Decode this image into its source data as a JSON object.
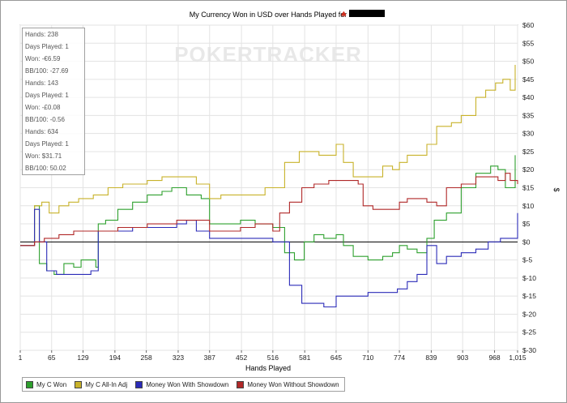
{
  "chart_data": {
    "type": "line",
    "title": "My Currency Won in USD over Hands Played for",
    "xlabel": "Hands Played",
    "ylabel": "$",
    "x_ticks": [
      "1",
      "65",
      "129",
      "194",
      "258",
      "323",
      "387",
      "452",
      "516",
      "581",
      "645",
      "710",
      "774",
      "839",
      "903",
      "968",
      "1,015"
    ],
    "y_ticks": [
      "$60",
      "$55",
      "$50",
      "$45",
      "$40",
      "$35",
      "$30",
      "$25",
      "$20",
      "$15",
      "$10",
      "$5",
      "$0",
      "$-5",
      "$-10",
      "$-15",
      "$-20",
      "$-25",
      "$-30"
    ],
    "ylim": [
      -30,
      60
    ],
    "xlim": [
      1,
      1015
    ],
    "grid": true,
    "legend_position": "bottom-left",
    "watermark": "POKERTRACKER",
    "series": [
      {
        "name": "My C Won",
        "color": "#2ea02e",
        "points": [
          [
            1,
            -1
          ],
          [
            20,
            -1
          ],
          [
            30,
            10
          ],
          [
            40,
            -6
          ],
          [
            55,
            -8
          ],
          [
            70,
            -9
          ],
          [
            90,
            -6
          ],
          [
            110,
            -7
          ],
          [
            125,
            -5
          ],
          [
            155,
            -7
          ],
          [
            160,
            5
          ],
          [
            175,
            6
          ],
          [
            200,
            9
          ],
          [
            230,
            11
          ],
          [
            260,
            13
          ],
          [
            290,
            14
          ],
          [
            310,
            15
          ],
          [
            340,
            13
          ],
          [
            370,
            12
          ],
          [
            387,
            5
          ],
          [
            420,
            5
          ],
          [
            450,
            6
          ],
          [
            480,
            5
          ],
          [
            510,
            5
          ],
          [
            516,
            4
          ],
          [
            540,
            -3
          ],
          [
            560,
            -5
          ],
          [
            580,
            0
          ],
          [
            600,
            2
          ],
          [
            620,
            1
          ],
          [
            645,
            2
          ],
          [
            660,
            -1
          ],
          [
            680,
            -4
          ],
          [
            710,
            -5
          ],
          [
            740,
            -4
          ],
          [
            760,
            -3
          ],
          [
            774,
            -1
          ],
          [
            790,
            -2
          ],
          [
            810,
            -3
          ],
          [
            830,
            1
          ],
          [
            845,
            6
          ],
          [
            870,
            8
          ],
          [
            900,
            15
          ],
          [
            930,
            19
          ],
          [
            960,
            21
          ],
          [
            975,
            20
          ],
          [
            990,
            15
          ],
          [
            1010,
            24
          ]
        ]
      },
      {
        "name": "My C All-In Adj",
        "color": "#c8b22a",
        "points": [
          [
            1,
            -1
          ],
          [
            20,
            -1
          ],
          [
            30,
            10
          ],
          [
            45,
            11
          ],
          [
            60,
            8
          ],
          [
            80,
            10
          ],
          [
            100,
            11
          ],
          [
            120,
            12
          ],
          [
            150,
            13
          ],
          [
            180,
            15
          ],
          [
            210,
            16
          ],
          [
            240,
            16
          ],
          [
            260,
            17
          ],
          [
            290,
            18
          ],
          [
            320,
            18
          ],
          [
            345,
            18
          ],
          [
            360,
            16
          ],
          [
            387,
            12
          ],
          [
            410,
            13
          ],
          [
            440,
            13
          ],
          [
            470,
            13
          ],
          [
            500,
            15
          ],
          [
            516,
            15
          ],
          [
            540,
            22
          ],
          [
            570,
            25
          ],
          [
            590,
            25
          ],
          [
            610,
            24
          ],
          [
            645,
            27
          ],
          [
            660,
            22
          ],
          [
            680,
            18
          ],
          [
            710,
            18
          ],
          [
            740,
            21
          ],
          [
            760,
            20
          ],
          [
            774,
            22
          ],
          [
            790,
            24
          ],
          [
            810,
            24
          ],
          [
            830,
            27
          ],
          [
            850,
            32
          ],
          [
            880,
            33
          ],
          [
            900,
            35
          ],
          [
            930,
            40
          ],
          [
            950,
            42
          ],
          [
            970,
            44
          ],
          [
            985,
            45
          ],
          [
            1000,
            42
          ],
          [
            1010,
            49
          ]
        ]
      },
      {
        "name": "Money Won With Showdown",
        "color": "#2b2bb8",
        "points": [
          [
            1,
            -1
          ],
          [
            20,
            -1
          ],
          [
            30,
            9
          ],
          [
            40,
            0
          ],
          [
            55,
            -8
          ],
          [
            75,
            -9
          ],
          [
            100,
            -9
          ],
          [
            130,
            -9
          ],
          [
            145,
            -8
          ],
          [
            160,
            3
          ],
          [
            200,
            3
          ],
          [
            230,
            4
          ],
          [
            260,
            4
          ],
          [
            300,
            4
          ],
          [
            320,
            5
          ],
          [
            340,
            6
          ],
          [
            360,
            3
          ],
          [
            387,
            1
          ],
          [
            420,
            1
          ],
          [
            450,
            1
          ],
          [
            480,
            1
          ],
          [
            510,
            1
          ],
          [
            516,
            0
          ],
          [
            540,
            0
          ],
          [
            550,
            -12
          ],
          [
            575,
            -17
          ],
          [
            600,
            -17
          ],
          [
            620,
            -18
          ],
          [
            645,
            -15
          ],
          [
            680,
            -15
          ],
          [
            710,
            -14
          ],
          [
            740,
            -14
          ],
          [
            770,
            -13
          ],
          [
            790,
            -11
          ],
          [
            810,
            -9
          ],
          [
            830,
            -1
          ],
          [
            850,
            -6
          ],
          [
            870,
            -4
          ],
          [
            900,
            -3
          ],
          [
            930,
            -2
          ],
          [
            955,
            0
          ],
          [
            980,
            1
          ],
          [
            1000,
            1
          ],
          [
            1015,
            8
          ]
        ]
      },
      {
        "name": "Money Won Without Showdown",
        "color": "#b02828",
        "points": [
          [
            1,
            -1
          ],
          [
            20,
            -1
          ],
          [
            30,
            0
          ],
          [
            50,
            1
          ],
          [
            80,
            2
          ],
          [
            110,
            3
          ],
          [
            140,
            3
          ],
          [
            170,
            3
          ],
          [
            200,
            4
          ],
          [
            230,
            4
          ],
          [
            260,
            5
          ],
          [
            290,
            5
          ],
          [
            320,
            6
          ],
          [
            350,
            6
          ],
          [
            387,
            3
          ],
          [
            420,
            3
          ],
          [
            450,
            4
          ],
          [
            480,
            5
          ],
          [
            500,
            5
          ],
          [
            516,
            3
          ],
          [
            530,
            8
          ],
          [
            550,
            11
          ],
          [
            575,
            15
          ],
          [
            600,
            16
          ],
          [
            630,
            17
          ],
          [
            660,
            17
          ],
          [
            690,
            16
          ],
          [
            700,
            10
          ],
          [
            720,
            9
          ],
          [
            750,
            9
          ],
          [
            774,
            11
          ],
          [
            790,
            12
          ],
          [
            810,
            12
          ],
          [
            830,
            11
          ],
          [
            850,
            10
          ],
          [
            870,
            15
          ],
          [
            900,
            16
          ],
          [
            930,
            18
          ],
          [
            960,
            18
          ],
          [
            975,
            17
          ],
          [
            990,
            19
          ],
          [
            1000,
            17
          ],
          [
            1015,
            16
          ]
        ]
      }
    ]
  },
  "stats_box": [
    "Hands: 238",
    "Days Played: 1",
    "Won: -€6.59",
    "BB/100: -27.69",
    "Hands: 143",
    "Days Played: 1",
    "Won: -£0.08",
    "BB/100: -0.56",
    "Hands: 634",
    "Days Played: 1",
    "Won: $31.71",
    "BB/100: 50.02"
  ]
}
